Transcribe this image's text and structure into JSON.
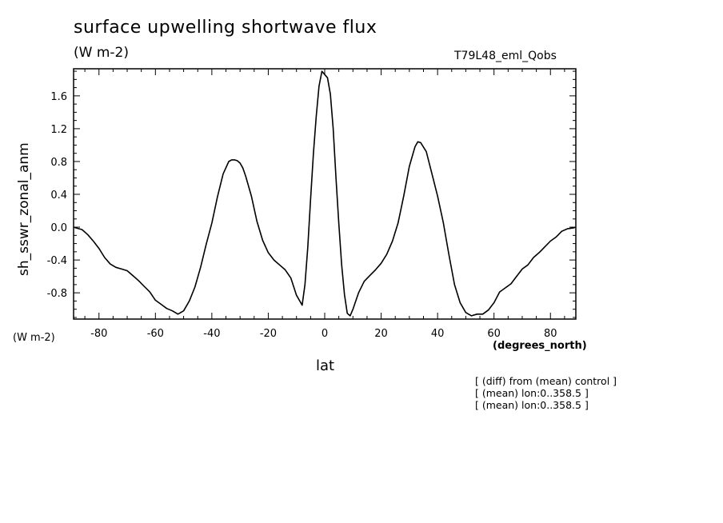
{
  "header": {
    "title": "surface upwelling shortwave flux",
    "subtitle": "(W m-2)",
    "run_name": "T79L48_eml_Qobs"
  },
  "units_left": "(W m-2)",
  "units_x": "(degrees_north)",
  "notes": [
    "[ (diff) from (mean) control ]",
    "[ (mean) lon:0..358.5 ]",
    "[ (mean) lon:0..358.5 ]"
  ],
  "chart_data": {
    "type": "line",
    "title": "surface upwelling shortwave flux",
    "xlabel": "lat",
    "ylabel": "sh_sswr_zonal_anm",
    "xlim": [
      -89,
      89
    ],
    "ylim": [
      -1.12,
      1.93
    ],
    "xticks": [
      -80,
      -60,
      -40,
      -20,
      0,
      20,
      40,
      60,
      80
    ],
    "yticks": [
      "1.6",
      "1.2",
      "0.8",
      "0.4",
      "0.0",
      "-0.4",
      "-0.8"
    ],
    "ytick_values": [
      1.6,
      1.2,
      0.8,
      0.4,
      0.0,
      -0.4,
      -0.8
    ],
    "grid": false,
    "series": [
      {
        "color": "#000000",
        "x": [
          -89,
          -86,
          -84,
          -82,
          -80,
          -78,
          -76,
          -74,
          -72,
          -70,
          -68,
          -66,
          -64,
          -62,
          -60,
          -58,
          -56,
          -54,
          -52,
          -50,
          -48,
          -46,
          -44,
          -42,
          -40,
          -38,
          -36,
          -34,
          -33,
          -32,
          -31,
          -30,
          -29,
          -28,
          -26,
          -24,
          -22,
          -20,
          -18,
          -16,
          -14,
          -12,
          -10,
          -8,
          -7,
          -6,
          -5,
          -4,
          -3,
          -2,
          -1,
          0,
          1,
          2,
          3,
          4,
          5,
          6,
          7,
          8,
          9,
          10,
          12,
          14,
          16,
          18,
          20,
          22,
          24,
          26,
          28,
          30,
          32,
          33,
          34,
          36,
          38,
          40,
          42,
          44,
          46,
          48,
          50,
          52,
          54,
          56,
          58,
          60,
          62,
          64,
          66,
          68,
          70,
          72,
          74,
          76,
          78,
          80,
          82,
          84,
          86,
          88,
          89
        ],
        "y": [
          0.0,
          -0.03,
          -0.09,
          -0.17,
          -0.26,
          -0.37,
          -0.45,
          -0.49,
          -0.51,
          -0.53,
          -0.59,
          -0.65,
          -0.72,
          -0.79,
          -0.89,
          -0.94,
          -0.99,
          -1.02,
          -1.06,
          -1.02,
          -0.9,
          -0.73,
          -0.49,
          -0.21,
          0.05,
          0.37,
          0.65,
          0.8,
          0.82,
          0.82,
          0.81,
          0.78,
          0.72,
          0.62,
          0.38,
          0.07,
          -0.16,
          -0.31,
          -0.4,
          -0.46,
          -0.52,
          -0.62,
          -0.83,
          -0.95,
          -0.7,
          -0.25,
          0.35,
          0.9,
          1.35,
          1.72,
          1.9,
          1.86,
          1.82,
          1.62,
          1.2,
          0.6,
          0.05,
          -0.46,
          -0.82,
          -1.05,
          -1.08,
          -1.0,
          -0.8,
          -0.66,
          -0.59,
          -0.52,
          -0.44,
          -0.33,
          -0.17,
          0.05,
          0.38,
          0.74,
          0.98,
          1.04,
          1.03,
          0.92,
          0.65,
          0.38,
          0.06,
          -0.33,
          -0.7,
          -0.92,
          -1.04,
          -1.08,
          -1.06,
          -1.06,
          -1.01,
          -0.92,
          -0.79,
          -0.74,
          -0.69,
          -0.6,
          -0.51,
          -0.46,
          -0.37,
          -0.31,
          -0.24,
          -0.17,
          -0.12,
          -0.05,
          -0.02,
          -0.01,
          0.0
        ]
      }
    ]
  }
}
